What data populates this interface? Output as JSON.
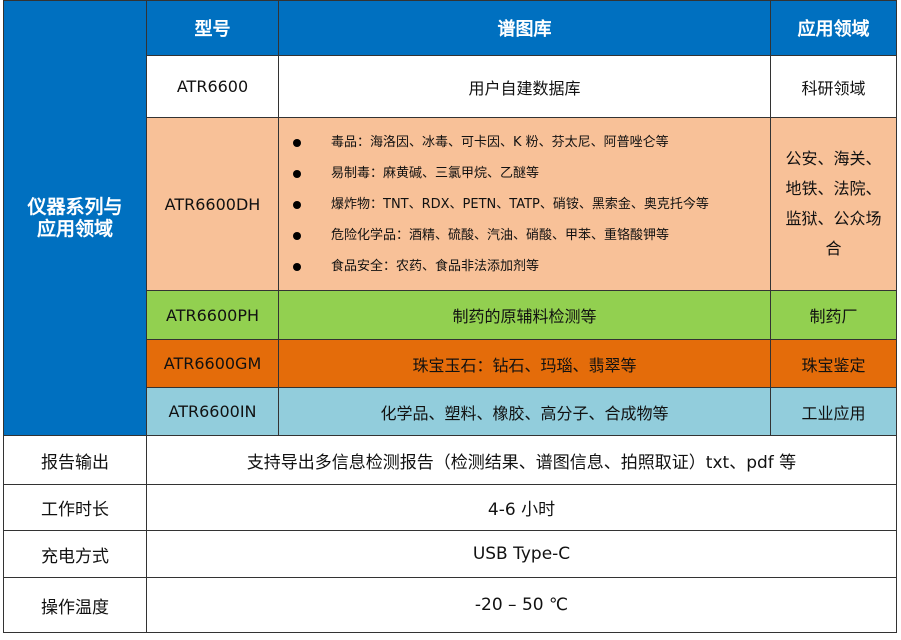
{
  "side_title": "仪器系列与应用领域",
  "headers": {
    "model": "型号",
    "library": "谱图库",
    "field": "应用领域"
  },
  "rows": [
    {
      "model": "ATR6600",
      "library": "用户自建数据库",
      "field": "科研领域",
      "color": "#ffffff"
    },
    {
      "model": "ATR6600DH",
      "library_items": [
        "毒品：海洛因、冰毒、可卡因、K 粉、芬太尼、阿普唑仑等",
        "易制毒：麻黄碱、三氯甲烷、乙醚等",
        "爆炸物：TNT、RDX、PETN、TATP、硝铵、黑索金、奥克托今等",
        "危险化学品：酒精、硫酸、汽油、硝酸、甲苯、重铬酸钾等",
        "食品安全：农药、食品非法添加剂等"
      ],
      "field": "公安、海关、地铁、法院、监狱、公众场合",
      "color": "#f8c198"
    },
    {
      "model": "ATR6600PH",
      "library": "制药的原辅料检测等",
      "field": "制药厂",
      "color": "#92d050"
    },
    {
      "model": "ATR6600GM",
      "library": "珠宝玉石：钻石、玛瑙、翡翠等",
      "field": "珠宝鉴定",
      "color": "#e46c0a"
    },
    {
      "model": "ATR6600IN",
      "library": "化学品、塑料、橡胶、高分子、合成物等",
      "field": "工业应用",
      "color": "#92cddc"
    }
  ],
  "specs": [
    {
      "label": "报告输出",
      "value": "支持导出多信息检测报告（检测结果、谱图信息、拍照取证）txt、pdf 等"
    },
    {
      "label": "工作时长",
      "value": "4-6  小时"
    },
    {
      "label": "充电方式",
      "value": "USB Type-C"
    },
    {
      "label": "操作温度",
      "value": "-20  –  50  ℃"
    }
  ]
}
